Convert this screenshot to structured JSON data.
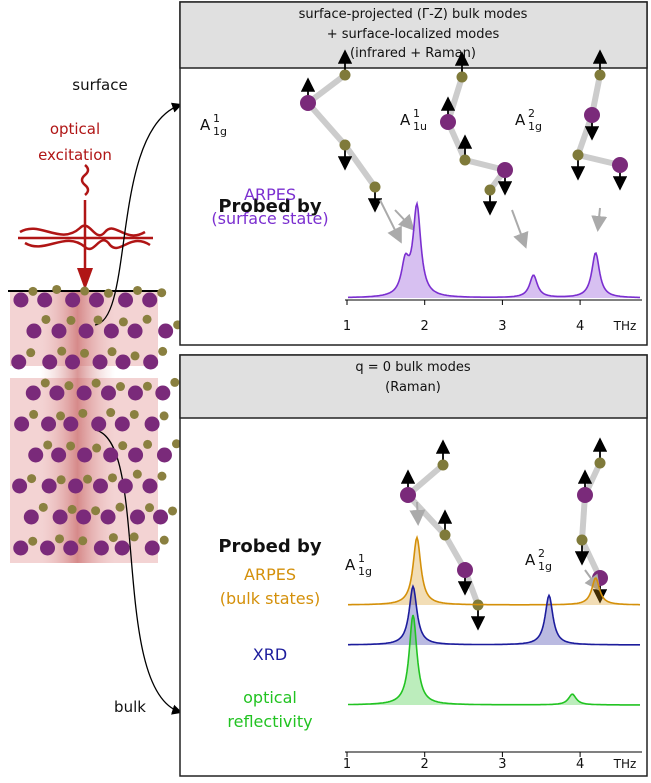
{
  "schematic": {
    "surface_label": "surface",
    "excitation_label": [
      "optical",
      "excitation"
    ],
    "bulk_label": "bulk"
  },
  "panels": [
    {
      "header": [
        "surface-projected (Γ-Z) bulk modes",
        "+ surface-localized modes",
        "(infrared + Raman)"
      ],
      "modes": [
        {
          "base": "A",
          "sup": "1",
          "sub": "1g"
        },
        {
          "base": "A",
          "sup": "1",
          "sub": "1u"
        },
        {
          "base": "A",
          "sup": "2",
          "sub": "1g"
        }
      ],
      "probed_by": "Probed by",
      "xlim": [
        1,
        4.5
      ],
      "xticks": [
        1,
        2,
        3,
        4
      ],
      "x_unit": "THz",
      "spectra": [
        {
          "name": [
            "ARPES",
            "(surface state)"
          ],
          "color": "#7b2fd0",
          "peaks": [
            1.75,
            1.9,
            3.4,
            4.2
          ],
          "heights": [
            0.35,
            1,
            0.25,
            0.5
          ]
        }
      ]
    },
    {
      "header": [
        "q = 0 bulk modes",
        "(Raman)"
      ],
      "modes": [
        {
          "base": "A",
          "sup": "1",
          "sub": "1g"
        },
        {
          "base": "A",
          "sup": "2",
          "sub": "1g"
        }
      ],
      "probed_by": "Probed by",
      "xlim": [
        1,
        4.5
      ],
      "xticks": [
        1,
        2,
        3,
        4
      ],
      "x_unit": "THz",
      "spectra": [
        {
          "name": [
            "ARPES",
            "(bulk states)"
          ],
          "color": "#d4900a",
          "peaks": [
            1.9,
            4.2
          ],
          "heights": [
            0.75,
            0.3
          ]
        },
        {
          "name": [
            "XRD"
          ],
          "color": "#1c1c9c",
          "peaks": [
            1.85,
            3.6
          ],
          "heights": [
            0.65,
            0.55
          ]
        },
        {
          "name": [
            "optical",
            "reflectivity"
          ],
          "color": "#22c322",
          "peaks": [
            1.85,
            3.9
          ],
          "heights": [
            1,
            0.12
          ]
        }
      ]
    }
  ]
}
